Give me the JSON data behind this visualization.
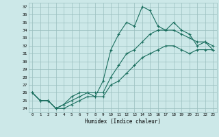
{
  "xlabel": "Humidex (Indice chaleur)",
  "bg_color": "#cce8e8",
  "grid_color": "#9bbfbf",
  "line_color": "#1a6e5e",
  "x_ticks": [
    0,
    1,
    2,
    3,
    4,
    5,
    6,
    7,
    8,
    9,
    10,
    11,
    12,
    13,
    14,
    15,
    16,
    17,
    18,
    19,
    20,
    21,
    22,
    23
  ],
  "y_ticks": [
    24,
    25,
    26,
    27,
    28,
    29,
    30,
    31,
    32,
    33,
    34,
    35,
    36,
    37
  ],
  "xlim": [
    -0.5,
    23.5
  ],
  "ylim": [
    23.5,
    37.5
  ],
  "series": [
    {
      "x": [
        0,
        1,
        2,
        3,
        4,
        5,
        6,
        7,
        8,
        9,
        10,
        11,
        12,
        13,
        14,
        15,
        16,
        17,
        18,
        19,
        20,
        21,
        22,
        23
      ],
      "y": [
        26,
        25,
        25,
        24,
        24.5,
        25.5,
        26,
        26,
        25.5,
        27.5,
        31.5,
        33.5,
        35,
        34.5,
        37,
        36.5,
        34.5,
        34,
        35,
        34,
        33.5,
        32,
        32.5,
        31.5
      ]
    },
    {
      "x": [
        0,
        1,
        2,
        3,
        4,
        5,
        6,
        7,
        8,
        9,
        10,
        11,
        12,
        13,
        14,
        15,
        16,
        17,
        18,
        19,
        20,
        21,
        22,
        23
      ],
      "y": [
        26,
        25,
        25,
        24,
        24.5,
        25,
        25.5,
        26,
        26,
        26,
        28,
        29.5,
        31,
        31.5,
        32.5,
        33.5,
        34,
        34,
        34,
        33.5,
        33,
        32.5,
        32.5,
        32
      ]
    },
    {
      "x": [
        0,
        1,
        2,
        3,
        4,
        5,
        6,
        7,
        8,
        9,
        10,
        11,
        12,
        13,
        14,
        15,
        16,
        17,
        18,
        19,
        20,
        21,
        22,
        23
      ],
      "y": [
        26,
        25,
        25,
        24,
        24,
        24.5,
        25,
        25.5,
        25.5,
        25.5,
        27,
        27.5,
        28.5,
        29.5,
        30.5,
        31,
        31.5,
        32,
        32,
        31.5,
        31,
        31.5,
        31.5,
        31.5
      ]
    }
  ]
}
